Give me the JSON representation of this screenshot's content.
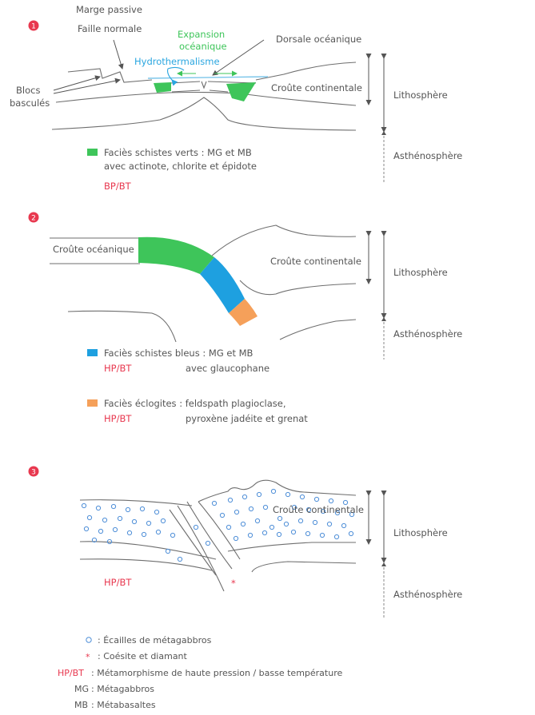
{
  "colors": {
    "accent_red": "#e8384f",
    "schistes_verts": "#3ec55a",
    "schistes_bleus": "#1ea0e0",
    "eclogites": "#f5a05a",
    "hydro": "#2aa6e0",
    "metagabbro_circle": "#4f8fd8"
  },
  "panel1": {
    "number": "1",
    "marge_passive": "Marge passive",
    "faille_normale": "Faille normale",
    "blocs_line1": "Blocs",
    "blocs_line2": "basculés",
    "expansion_line1": "Expansion",
    "expansion_line2": "océanique",
    "hydrothermalisme": "Hydrothermalisme",
    "dorsale": "Dorsale océanique",
    "croute_continentale": "Croûte continentale",
    "lithosphere": "Lithosphère",
    "asthenosphere": "Asthénosphère",
    "legend_line1": "Faciès schistes verts : MG et MB",
    "legend_line2": "avec actinote, chlorite et épidote",
    "conditions": "BP/BT"
  },
  "panel2": {
    "number": "2",
    "croute_oceanique": "Croûte océanique",
    "croute_continentale": "Croûte continentale",
    "lithosphere": "Lithosphère",
    "asthenosphere": "Asthénosphère",
    "legend_bleus_line1": "Faciès schistes bleus : MG et MB",
    "legend_bleus_line2": "avec glaucophane",
    "conditions_bleus": "HP/BT",
    "legend_eclogites_line1": "Faciès éclogites : feldspath plagioclase,",
    "legend_eclogites_line2": "pyroxène jadéite et grenat",
    "conditions_eclogites": "HP/BT"
  },
  "panel3": {
    "number": "3",
    "croute_continentale": "Croûte continentale",
    "lithosphere": "Lithosphère",
    "asthenosphere": "Asthénosphère",
    "conditions": "HP/BT",
    "asterisk": "*"
  },
  "key": {
    "circle_symbol": "○",
    "circle_text": ": Écailles de métagabbros",
    "asterisk_symbol": "*",
    "asterisk_text": ": Coésite et diamant",
    "hpbt_abbr": "HP/BT",
    "hpbt_text": ": Métamorphisme de haute pression / basse température",
    "mg_abbr": "MG",
    "mg_text": ": Métagabbros",
    "mb_abbr": "MB",
    "mb_text": ": Métabasaltes"
  }
}
